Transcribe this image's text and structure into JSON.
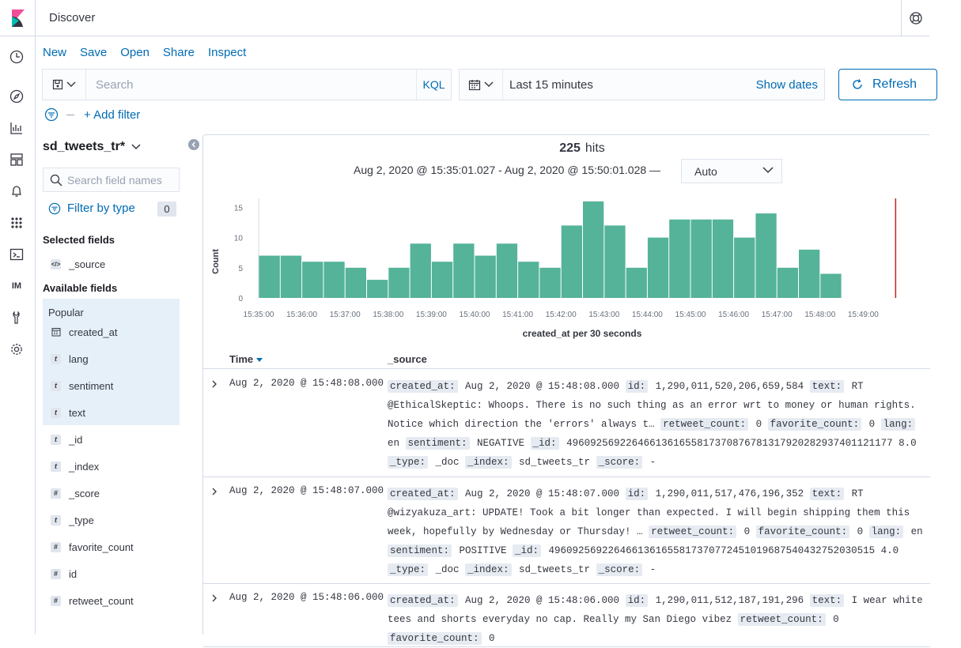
{
  "app": {
    "title": "Discover"
  },
  "nav": {
    "items": [
      "clock-icon",
      "compass-icon",
      "visualize-icon",
      "dashboard-icon",
      "bell-icon",
      "apps-grid-icon",
      "console-icon",
      "im-label",
      "tools-icon",
      "gear-icon"
    ],
    "im_label": "IM"
  },
  "topmenu": {
    "new": "New",
    "save": "Save",
    "open": "Open",
    "share": "Share",
    "inspect": "Inspect"
  },
  "query": {
    "placeholder": "Search",
    "language": "KQL"
  },
  "time": {
    "range": "Last 15 minutes",
    "show_dates": "Show dates",
    "refresh": "Refresh"
  },
  "filters": {
    "add": "+ Add filter"
  },
  "sidebar": {
    "index_pattern": "sd_tweets_tr*",
    "search_placeholder": "Search field names",
    "filter_by_type": "Filter by type",
    "filter_count": "0",
    "selected_label": "Selected fields",
    "selected": [
      {
        "name": "_source",
        "type": "source"
      }
    ],
    "available_label": "Available fields",
    "popular_label": "Popular",
    "popular": [
      {
        "name": "created_at",
        "type": "date"
      },
      {
        "name": "lang",
        "type": "t"
      },
      {
        "name": "sentiment",
        "type": "t"
      },
      {
        "name": "text",
        "type": "t"
      }
    ],
    "others": [
      {
        "name": "_id",
        "type": "t"
      },
      {
        "name": "_index",
        "type": "t"
      },
      {
        "name": "_score",
        "type": "#"
      },
      {
        "name": "_type",
        "type": "t"
      },
      {
        "name": "favorite_count",
        "type": "#"
      },
      {
        "name": "id",
        "type": "#"
      },
      {
        "name": "retweet_count",
        "type": "#"
      }
    ]
  },
  "summary": {
    "hits_count": "225",
    "hits_label": "hits",
    "range": "Aug 2, 2020 @ 15:35:01.027 - Aug 2, 2020 @ 15:50:01.028 —",
    "interval": "Auto"
  },
  "chart_data": {
    "type": "bar",
    "xlabel": "created_at per 30 seconds",
    "ylabel": "Count",
    "ylim": [
      0,
      16.5
    ],
    "yticks": [
      0,
      5,
      10,
      15
    ],
    "xticks": [
      "15:35:00",
      "15:36:00",
      "15:37:00",
      "15:38:00",
      "15:39:00",
      "15:40:00",
      "15:41:00",
      "15:42:00",
      "15:43:00",
      "15:44:00",
      "15:45:00",
      "15:46:00",
      "15:47:00",
      "15:48:00",
      "15:49:00"
    ],
    "values": [
      7,
      7,
      6,
      6,
      5,
      3,
      5,
      9,
      6,
      9,
      7,
      9,
      6,
      5,
      12,
      16,
      12,
      5,
      10,
      13,
      13,
      13,
      10,
      14,
      5,
      8,
      4
    ],
    "bar_color": "#54b399",
    "marker_color": "#bd271e"
  },
  "table": {
    "col_time": "Time",
    "col_source": "_source",
    "rows": [
      {
        "time": "Aug 2, 2020 @ 15:48:08.000",
        "fields": [
          [
            "created_at:",
            "Aug 2, 2020 @ 15:48:08.000"
          ],
          [
            "id:",
            "1,290,011,520,206,659,584"
          ],
          [
            "text:",
            "RT @EthicalSkeptic: Whoops. There is no such thing as an error wrt to money or human rights. Notice which direction the 'errors' always t…"
          ],
          [
            "retweet_count:",
            "0"
          ],
          [
            "favorite_count:",
            "0"
          ],
          [
            "lang:",
            "en"
          ],
          [
            "sentiment:",
            "NEGATIVE"
          ],
          [
            "_id:",
            "4960925692264661361655817370876781317920282937401121177 8.0"
          ],
          [
            "_type:",
            "_doc"
          ],
          [
            "_index:",
            "sd_tweets_tr"
          ],
          [
            "_score:",
            " -"
          ]
        ]
      },
      {
        "time": "Aug 2, 2020 @ 15:48:07.000",
        "fields": [
          [
            "created_at:",
            "Aug 2, 2020 @ 15:48:07.000"
          ],
          [
            "id:",
            "1,290,011,517,476,196,352"
          ],
          [
            "text:",
            "RT @wizyakuza_art: UPDATE! Took a bit longer than expected. I will begin shipping them this week, hopefully by Wednesday or Thursday! …"
          ],
          [
            "retweet_count:",
            "0"
          ],
          [
            "favorite_count:",
            "0"
          ],
          [
            "lang:",
            "en"
          ],
          [
            "sentiment:",
            "POSITIVE"
          ],
          [
            "_id:",
            "4960925692264661361655817370772451019687540432752030515 4.0"
          ],
          [
            "_type:",
            "_doc"
          ],
          [
            "_index:",
            "sd_tweets_tr"
          ],
          [
            "_score:",
            " -"
          ]
        ]
      },
      {
        "time": "Aug 2, 2020 @ 15:48:06.000",
        "fields": [
          [
            "created_at:",
            "Aug 2, 2020 @ 15:48:06.000"
          ],
          [
            "id:",
            "1,290,011,512,187,191,296"
          ],
          [
            "text:",
            "I wear white tees and shorts everyday no cap. Really my San Diego vibez"
          ],
          [
            "retweet_count:",
            "0"
          ],
          [
            "favorite_count:",
            "0"
          ]
        ]
      }
    ]
  }
}
